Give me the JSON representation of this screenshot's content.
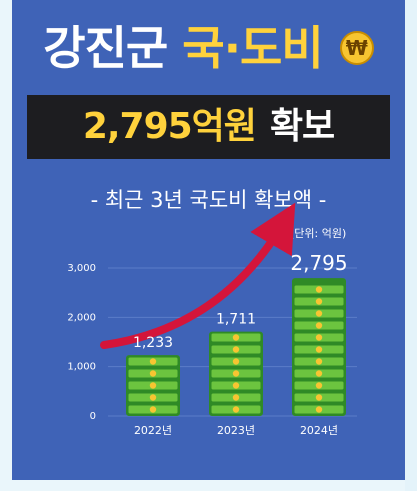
{
  "title": {
    "part1": "강진군",
    "part2": "국·도비",
    "coin_symbol": "₩"
  },
  "banner": {
    "amount": "2,795억원",
    "word": "확보"
  },
  "chart_data": {
    "type": "bar",
    "title": "- 최근 3년 국도비 확보액 -",
    "unit": "(단위: 억원)",
    "categories": [
      "2022년",
      "2023년",
      "2024년"
    ],
    "values": [
      1233,
      1711,
      2795
    ],
    "value_labels": [
      "1,233",
      "1,711",
      "2,795"
    ],
    "ylim": [
      0,
      3000
    ],
    "yticks": [
      0,
      1000,
      2000,
      3000
    ],
    "ytick_labels": [
      "0",
      "1,000",
      "2,000",
      "3,000"
    ],
    "bar_style": "stacked-money-bills",
    "colors": {
      "background": "#3f63b7",
      "bill": "#6cc43f",
      "bill_dark": "#2f8a26",
      "coin": "#f7c531",
      "arrow": "#d4153a",
      "accent_text": "#ffd23c"
    }
  }
}
